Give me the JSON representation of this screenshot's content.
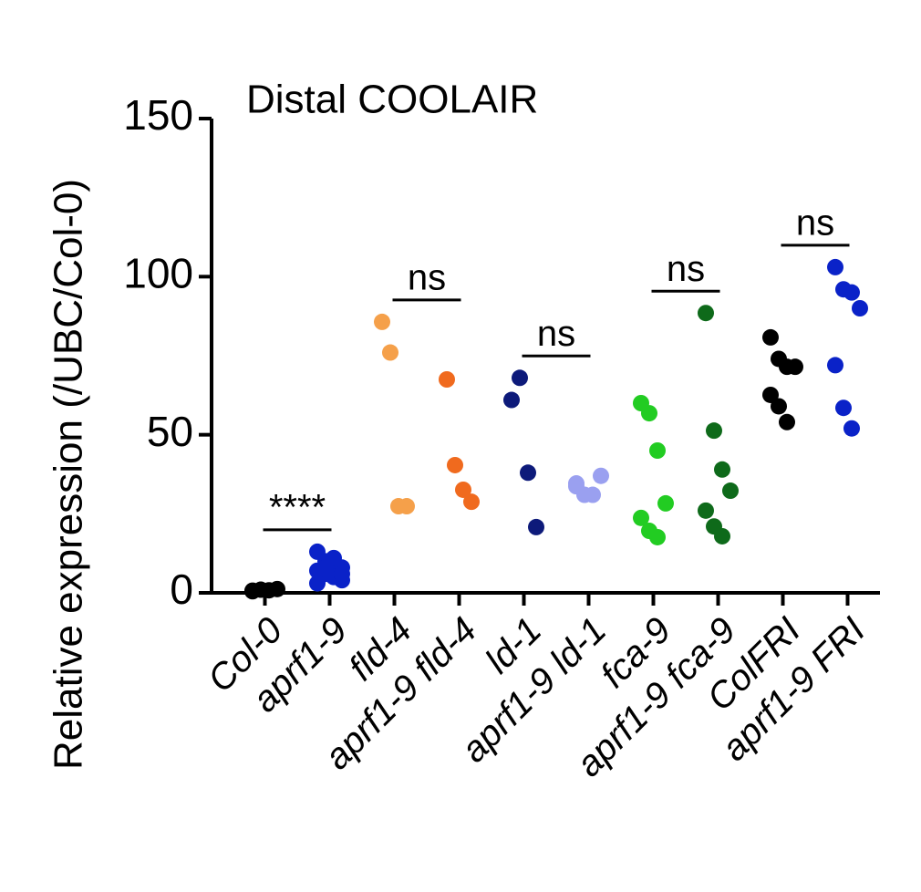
{
  "chart_data": {
    "type": "strip",
    "title": "Distal COOLAIR",
    "y_label": "Relative expression (/UBC/Col-0)",
    "categories": [
      "Col-0",
      "aprf1-9",
      "fld-4",
      "aprf1-9 fld-4",
      "ld-1",
      "aprf1-9 ld-1",
      "fca-9",
      "aprf1-9 fca-9",
      "ColFRI",
      "aprf1-9 FRI"
    ],
    "colors": [
      "#000000",
      "#0a22c8",
      "#f5a04a",
      "#f06a1e",
      "#0d1a7a",
      "#9aa0f0",
      "#22cc22",
      "#0e6a1a",
      "#000000",
      "#0a22c8"
    ],
    "values": [
      [
        0.5,
        1,
        0.8,
        1.2,
        0.7
      ],
      [
        13,
        10,
        9,
        8,
        7,
        6,
        5,
        4,
        3,
        8,
        11,
        6
      ],
      [
        85.7,
        76,
        27.4,
        27.4
      ],
      [
        67.5,
        40.4,
        32.6,
        28.8
      ],
      [
        61,
        68,
        38,
        20.8
      ],
      [
        34.6,
        31,
        31,
        37,
        33.7
      ],
      [
        60,
        56.8,
        45,
        28.3,
        23.7,
        19.6,
        17.6
      ],
      [
        88.5,
        51.3,
        39,
        32.3,
        26,
        21,
        17.9
      ],
      [
        80.8,
        74,
        71.5,
        71.5,
        62.6,
        59,
        54
      ],
      [
        103,
        96,
        95,
        90,
        72,
        58.5,
        52
      ]
    ],
    "annotations": [
      "****",
      "ns",
      "ns",
      "ns",
      "ns"
    ],
    "ylim": [
      0,
      150
    ],
    "yticks": [
      0,
      50,
      100,
      150
    ]
  }
}
